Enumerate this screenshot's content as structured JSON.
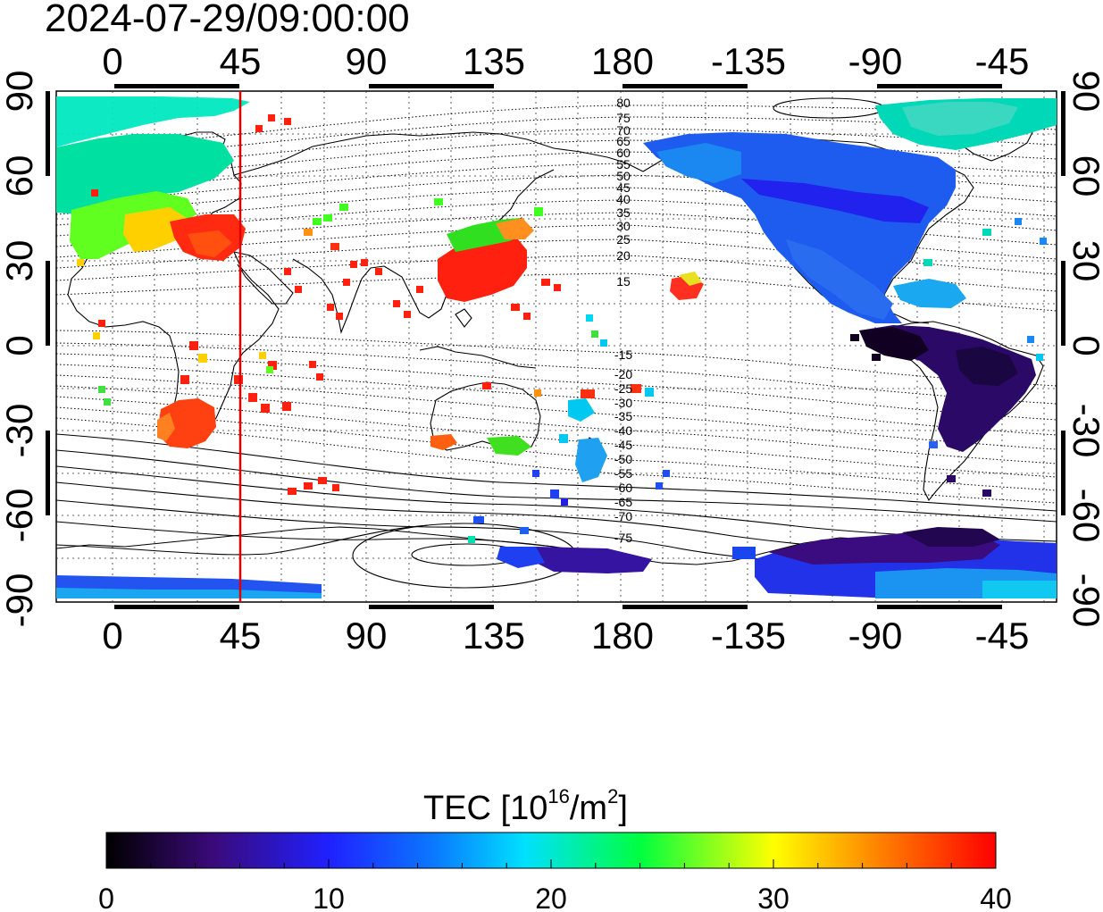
{
  "header": {
    "timestamp": "2024-07-29/09:00:00"
  },
  "map": {
    "x_ticks": [
      "0",
      "45",
      "90",
      "135",
      "180",
      "-135",
      "-90",
      "-45"
    ],
    "y_ticks": [
      "90",
      "60",
      "30",
      "0",
      "-30",
      "-60",
      "-90"
    ],
    "magnetic_latitude_labels": [
      "80",
      "75",
      "70",
      "65",
      "60",
      "55",
      "50",
      "45",
      "40",
      "35",
      "30",
      "25",
      "20",
      "15",
      "-15",
      "-20",
      "-25",
      "-30",
      "-35",
      "-40",
      "-45",
      "-50",
      "-55",
      "-60",
      "-65",
      "-70",
      "-75"
    ],
    "marker_line_longitude": 45,
    "marker_line_color": "#e00000"
  },
  "colorbar": {
    "title_prefix": "TEC  [10",
    "title_exp": "16",
    "title_mid": "/m",
    "title_sq": "2",
    "title_suffix": "]",
    "min": 0,
    "max": 40,
    "tick_labels": [
      "0",
      "10",
      "20",
      "30",
      "40"
    ],
    "colors": [
      "#000000",
      "#3a0a7a",
      "#2020ff",
      "#00e0ff",
      "#00ff40",
      "#ffff00",
      "#ff0000"
    ]
  }
}
